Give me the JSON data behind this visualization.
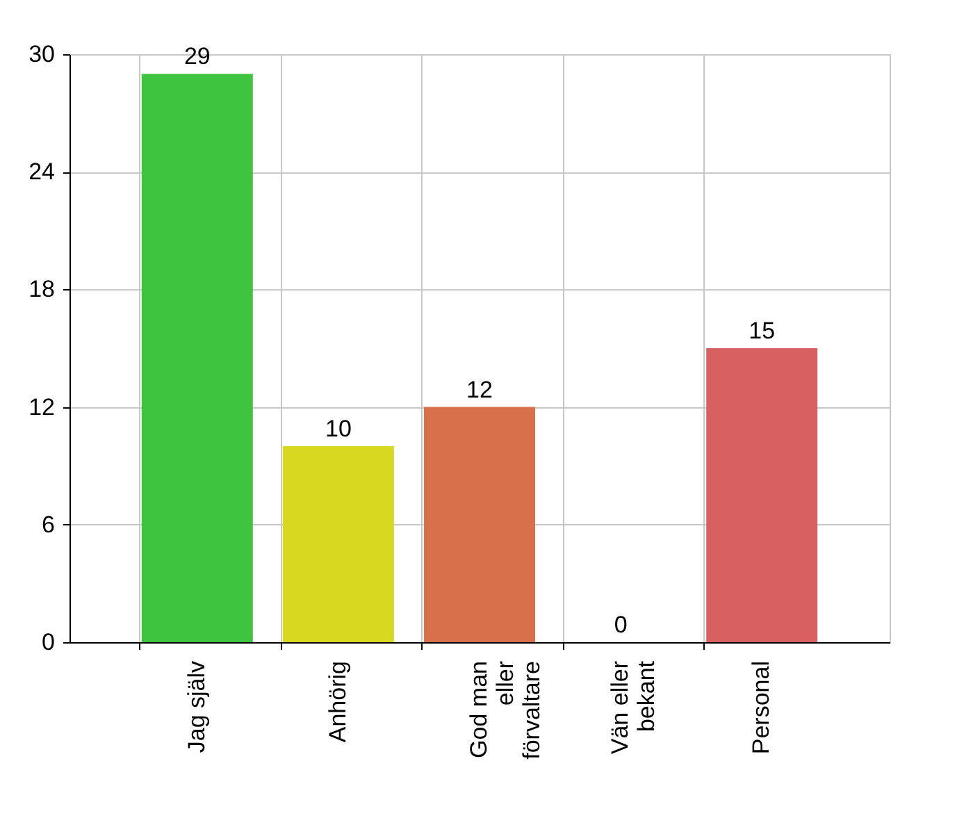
{
  "chart_data": {
    "type": "bar",
    "categories": [
      "Jag själv",
      "Anhörig",
      "God man\neller\nförvaltare",
      "Vän eller\nbekant",
      "Personal"
    ],
    "values": [
      29,
      10,
      12,
      0,
      15
    ],
    "colors": [
      "#3fc43f",
      "#d8d820",
      "#d8704c",
      "#888888",
      "#d86060"
    ],
    "ylim": [
      0,
      30
    ],
    "yticks": [
      0,
      6,
      12,
      18,
      24,
      30
    ],
    "grid": true,
    "data_labels": true
  }
}
